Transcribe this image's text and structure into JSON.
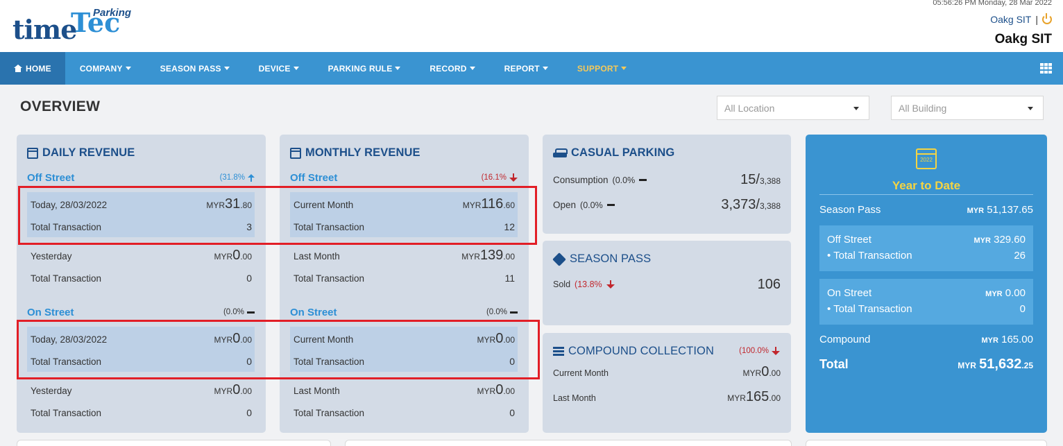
{
  "header": {
    "logo_time": "time",
    "logo_tec": "Tec",
    "logo_parking": "Parking",
    "datetime": "05:56:26 PM Monday, 28 Mar 2022",
    "user": "Oakg SIT",
    "separator": "|",
    "company": "Oakg SIT"
  },
  "nav": {
    "home": "HOME",
    "company": "COMPANY",
    "season_pass": "SEASON PASS",
    "device": "DEVICE",
    "parking_rule": "PARKING RULE",
    "record": "RECORD",
    "report": "REPORT",
    "support": "SUPPORT"
  },
  "overview": {
    "title": "OVERVIEW",
    "location_select": "All Location",
    "building_select": "All Building"
  },
  "daily": {
    "title": "DAILY REVENUE",
    "off_label": "Off Street",
    "off_pct": "(31.8%",
    "off_today_label": "Today, 28/03/2022",
    "off_today_cur": "MYR",
    "off_today_big": "31",
    "off_today_dec": ".80",
    "off_today_tx_label": "Total Transaction",
    "off_today_tx": "3",
    "off_yest_label": "Yesterday",
    "off_yest_cur": "MYR",
    "off_yest_big": "0",
    "off_yest_dec": ".00",
    "off_yest_tx_label": "Total Transaction",
    "off_yest_tx": "0",
    "on_label": "On Street",
    "on_pct": "(0.0%",
    "on_today_label": "Today, 28/03/2022",
    "on_today_cur": "MYR",
    "on_today_big": "0",
    "on_today_dec": ".00",
    "on_today_tx_label": "Total Transaction",
    "on_today_tx": "0",
    "on_yest_label": "Yesterday",
    "on_yest_cur": "MYR",
    "on_yest_big": "0",
    "on_yest_dec": ".00",
    "on_yest_tx_label": "Total Transaction",
    "on_yest_tx": "0"
  },
  "monthly": {
    "title": "MONTHLY REVENUE",
    "off_label": "Off Street",
    "off_pct": "(16.1%",
    "off_cur_label": "Current Month",
    "off_cur_cur": "MYR",
    "off_cur_big": "116",
    "off_cur_dec": ".60",
    "off_cur_tx_label": "Total Transaction",
    "off_cur_tx": "12",
    "off_last_label": "Last Month",
    "off_last_cur": "MYR",
    "off_last_big": "139",
    "off_last_dec": ".00",
    "off_last_tx_label": "Total Transaction",
    "off_last_tx": "11",
    "on_label": "On Street",
    "on_pct": "(0.0%",
    "on_cur_label": "Current Month",
    "on_cur_cur": "MYR",
    "on_cur_big": "0",
    "on_cur_dec": ".00",
    "on_cur_tx_label": "Total Transaction",
    "on_cur_tx": "0",
    "on_last_label": "Last Month",
    "on_last_cur": "MYR",
    "on_last_big": "0",
    "on_last_dec": ".00",
    "on_last_tx_label": "Total Transaction",
    "on_last_tx": "0"
  },
  "casual": {
    "title": "CASUAL PARKING",
    "consumption_label": "Consumption",
    "consumption_pct": "(0.0%",
    "consumption_val": "15/",
    "consumption_total": "3,388",
    "open_label": "Open",
    "open_pct": "(0.0%",
    "open_val": "3,373/",
    "open_total": "3,388"
  },
  "season": {
    "title": "SEASON PASS",
    "sold_label": "Sold",
    "sold_pct": "(13.8%",
    "sold_val": "106"
  },
  "compound": {
    "title": "COMPOUND COLLECTION",
    "pct": "(100.0%",
    "cur_label": "Current Month",
    "cur_cur": "MYR",
    "cur_big": "0",
    "cur_dec": ".00",
    "last_label": "Last Month",
    "last_cur": "MYR",
    "last_big": "165",
    "last_dec": ".00"
  },
  "ytd": {
    "year": "2022",
    "title": "Year to Date",
    "season_label": "Season Pass",
    "season_cur": "MYR",
    "season_val": "51,137.65",
    "off_label": "Off Street",
    "off_cur": "MYR",
    "off_val": "329.60",
    "off_tx_label": "• Total Transaction",
    "off_tx": "26",
    "on_label": "On Street",
    "on_cur": "MYR",
    "on_val": "0.00",
    "on_tx_label": "• Total Transaction",
    "on_tx": "0",
    "compound_label": "Compound",
    "compound_cur": "MYR",
    "compound_val": "165.00",
    "total_label": "Total",
    "total_cur": "MYR",
    "total_big": "51,632",
    "total_dec": ".25"
  },
  "colors": {
    "nav_bg": "#3a94d1",
    "nav_active": "#2a73ae",
    "card_bg": "#d3dbe6",
    "highlight": "#bdd0e6",
    "brand_dark": "#1c4f8a",
    "accent_blue": "#2d8fd5",
    "down_red": "#c1272d",
    "ytd_yellow": "#f5d442",
    "annotation_red": "#e21e26"
  }
}
